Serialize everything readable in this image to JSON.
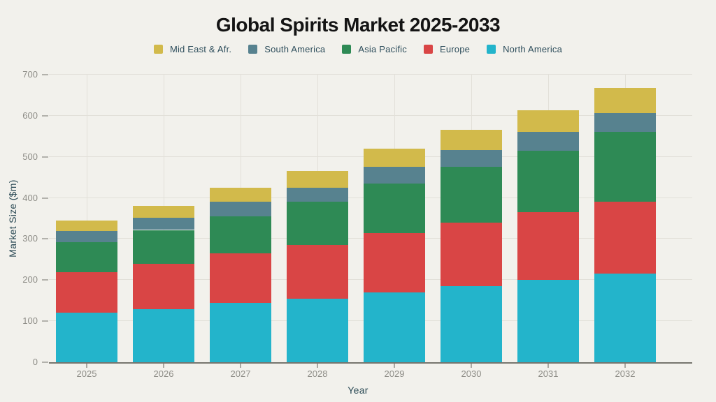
{
  "chart_data": {
    "type": "bar",
    "stacked": true,
    "title": "Global Spirits Market 2025-2033",
    "xlabel": "Year",
    "ylabel": "Market Size ($m)",
    "categories": [
      "2025",
      "2026",
      "2027",
      "2028",
      "2029",
      "2030",
      "2031",
      "2032"
    ],
    "series": [
      {
        "name": "North America",
        "color": "#23b4cb",
        "values": [
          120,
          130,
          145,
          155,
          170,
          185,
          200,
          215
        ]
      },
      {
        "name": "Europe",
        "color": "#d94545",
        "values": [
          100,
          110,
          120,
          130,
          145,
          155,
          165,
          175
        ]
      },
      {
        "name": "Asia Pacific",
        "color": "#2e8a55",
        "values": [
          73,
          82,
          90,
          105,
          120,
          135,
          150,
          170
        ]
      },
      {
        "name": "South America",
        "color": "#57828f",
        "values": [
          27,
          30,
          35,
          35,
          40,
          42,
          45,
          47
        ]
      },
      {
        "name": "Mid East & Afr.",
        "color": "#d2ba4b",
        "values": [
          25,
          28,
          35,
          40,
          45,
          48,
          53,
          60
        ]
      }
    ],
    "totals": [
      345,
      380,
      425,
      465,
      520,
      565,
      613,
      667
    ],
    "legend": {
      "position": "top",
      "order": [
        "Mid East & Afr.",
        "South America",
        "Asia Pacific",
        "Europe",
        "North America"
      ]
    },
    "ylim": [
      0,
      700
    ],
    "yticks": [
      0,
      100,
      200,
      300,
      400,
      500,
      600,
      700
    ],
    "grid": true,
    "background_color": "#f2f1ec"
  }
}
